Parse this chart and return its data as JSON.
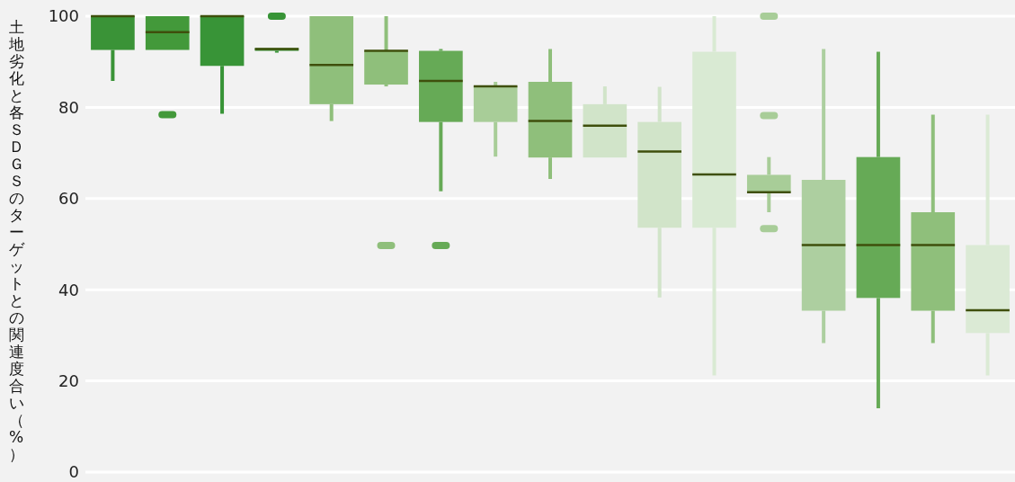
{
  "chart_data": {
    "type": "box",
    "ylabel": "土地劣化と各ＳＤＧＳのターゲットとの関連度合い（%）",
    "categories": [
      null,
      null,
      null,
      null,
      null,
      null,
      null,
      null,
      null,
      null,
      null,
      null,
      null,
      null,
      null,
      null,
      null
    ],
    "boxes": [
      {
        "low": 85.8,
        "q1": 92.6,
        "median": 100,
        "q3": 100,
        "high": 100
      },
      {
        "low": 92.6,
        "q1": 92.6,
        "median": 96.5,
        "q3": 100,
        "high": 100,
        "outliers": [
          78.4
        ]
      },
      {
        "low": 78.6,
        "q1": 89.1,
        "median": 100,
        "q3": 100,
        "high": 100
      },
      {
        "low": 92,
        "q1": 92.4,
        "median": 92.8,
        "q3": 93,
        "high": 93,
        "outliers": [
          100
        ]
      },
      {
        "low": 77,
        "q1": 80.7,
        "median": 89.3,
        "q3": 100,
        "high": 100
      },
      {
        "low": 84.6,
        "q1": 85,
        "median": 92.4,
        "q3": 92.4,
        "high": 100,
        "outliers": [
          49.7
        ]
      },
      {
        "low": 61.6,
        "q1": 76.8,
        "median": 85.8,
        "q3": 92.4,
        "high": 92.8,
        "outliers": [
          49.7
        ]
      },
      {
        "low": 69.2,
        "q1": 76.8,
        "median": 84.6,
        "q3": 84.6,
        "high": 85.6
      },
      {
        "low": 64.3,
        "q1": 69,
        "median": 77,
        "q3": 85.6,
        "high": 92.8
      },
      {
        "low": 69,
        "q1": 69,
        "median": 76,
        "q3": 80.7,
        "high": 84.6
      },
      {
        "low": 38.3,
        "q1": 53.6,
        "median": 70.3,
        "q3": 76.8,
        "high": 84.5
      },
      {
        "low": 21.2,
        "q1": 53.6,
        "median": 65.3,
        "q3": 92.2,
        "high": 100
      },
      {
        "low": 57,
        "q1": 61.4,
        "median": 61.4,
        "q3": 65.2,
        "high": 69.1,
        "outliers": [
          100,
          78.2,
          53.4
        ]
      },
      {
        "low": 28.3,
        "q1": 35.4,
        "median": 49.8,
        "q3": 64.1,
        "high": 92.8
      },
      {
        "low": 14,
        "q1": 38.2,
        "median": 49.8,
        "q3": 69.1,
        "high": 92.2
      },
      {
        "low": 28.3,
        "q1": 35.4,
        "median": 49.8,
        "q3": 57,
        "high": 78.4
      },
      {
        "low": 21.2,
        "q1": 30.5,
        "median": 35.5,
        "q3": 49.8,
        "high": 78.4
      }
    ],
    "colors": [
      "#3a9337",
      "#43993a",
      "#389437",
      "#389437",
      "#8fbf7b",
      "#8fbf7b",
      "#66aa56",
      "#a8cd98",
      "#8fbf7b",
      "#d1e4c9",
      "#d1e4c9",
      "#d9ead3",
      "#a8cd98",
      "#adcfa0",
      "#66aa56",
      "#8fbf7b",
      "#dbead5"
    ],
    "ylim": [
      0,
      100
    ],
    "yticks": [
      0,
      20,
      40,
      60,
      80,
      100
    ],
    "grid": "y"
  }
}
